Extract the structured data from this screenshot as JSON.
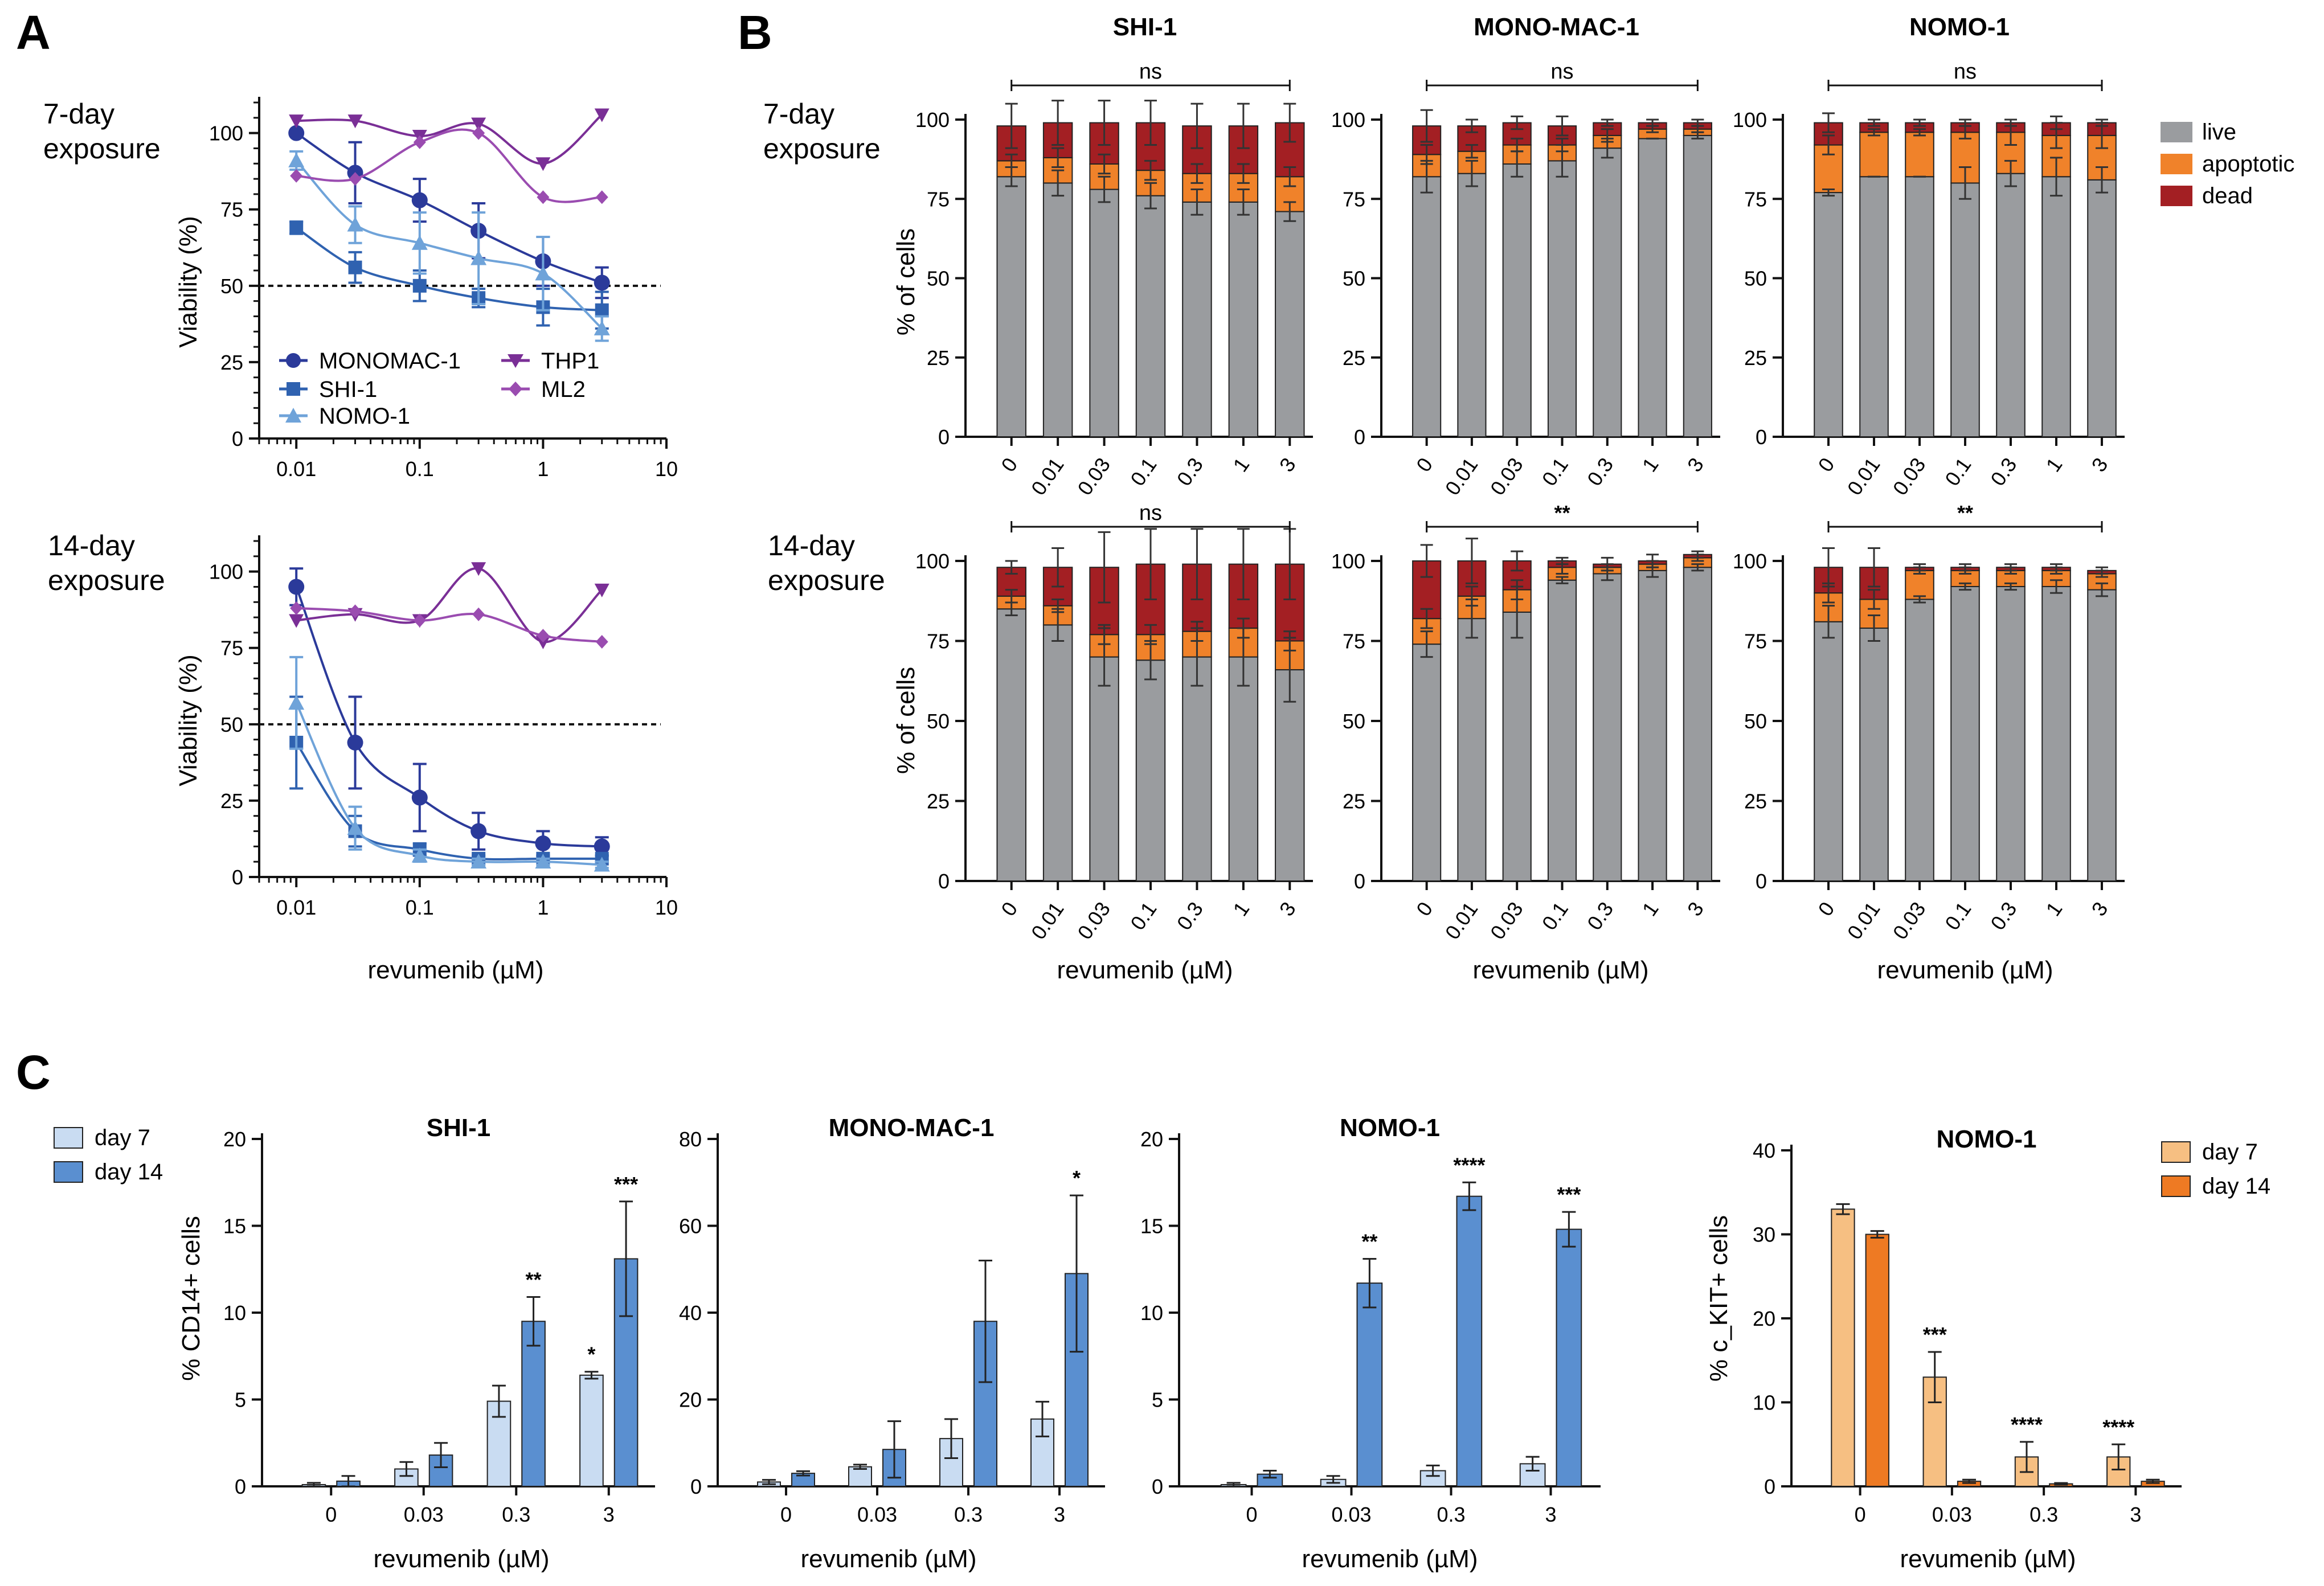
{
  "colors": {
    "monomac": "#2b3a9a",
    "shi": "#2f62b0",
    "nomo": "#6fa3d9",
    "thp1": "#7a2f96",
    "ml2": "#9a4cb0",
    "live": "#9a9c9f",
    "apoptotic": "#f0822a",
    "dead": "#a31f23",
    "day7_blue": "#c9dcf2",
    "day14_blue": "#5a8fd0",
    "day7_orange": "#f6bf82",
    "day14_orange": "#ee7a23",
    "threshold": "#111111"
  },
  "labels": {
    "panel_a": "A",
    "panel_b": "B",
    "panel_c": "C",
    "exp7_line1": "7-day",
    "exp7_line2": "exposure",
    "exp14_line1": "14-day",
    "exp14_line2": "exposure",
    "viability_axis": "Viability (%)",
    "pct_cells_axis": "% of cells",
    "x_axis": "revumenib (µM)",
    "cd14_axis": "% CD14+ cells",
    "ckit_axis": "% c_KIT+ cells"
  },
  "legend_a": [
    "MONOMAC-1",
    "SHI-1",
    "NOMO-1",
    "THP1",
    "ML2"
  ],
  "legend_b": [
    "live",
    "apoptotic",
    "dead"
  ],
  "legend_c": [
    "day 7",
    "day 14"
  ],
  "chart_data": [
    {
      "id": "a7",
      "type": "scatter",
      "title": "7-day exposure",
      "xscale": "log",
      "xlim": [
        0.005,
        10
      ],
      "ylim": [
        0,
        110
      ],
      "xticks": [
        "0.01",
        "0.1",
        "1",
        "10"
      ],
      "yticks": [
        "0",
        "25",
        "50",
        "75",
        "100"
      ],
      "xlabel": "",
      "ylabel": "Viability (%)",
      "threshold": 50,
      "x": [
        0.01,
        0.03,
        0.1,
        0.3,
        1,
        3
      ],
      "series": [
        {
          "name": "MONOMAC-1",
          "values": [
            100,
            87,
            78,
            68,
            58,
            51
          ],
          "errors": [
            0,
            10,
            7,
            9,
            8,
            5
          ]
        },
        {
          "name": "SHI-1",
          "values": [
            69,
            56,
            50,
            46,
            43,
            42
          ],
          "errors": [
            2,
            5,
            5,
            3,
            6,
            6
          ]
        },
        {
          "name": "NOMO-1",
          "values": [
            91,
            70,
            64,
            59,
            54,
            36
          ],
          "errors": [
            3,
            6,
            10,
            15,
            12,
            4
          ]
        },
        {
          "name": "THP1",
          "values": [
            104,
            104,
            99,
            103,
            90,
            106
          ],
          "errors": [
            0,
            0,
            0,
            0,
            0,
            0
          ]
        },
        {
          "name": "ML2",
          "values": [
            86,
            85,
            97,
            100,
            79,
            79
          ],
          "errors": [
            0,
            0,
            0,
            0,
            0,
            0
          ]
        }
      ]
    },
    {
      "id": "a14",
      "type": "scatter",
      "title": "14-day exposure",
      "xscale": "log",
      "xlim": [
        0.005,
        10
      ],
      "ylim": [
        0,
        110
      ],
      "xticks": [
        "0.01",
        "0.1",
        "1",
        "10"
      ],
      "yticks": [
        "0",
        "25",
        "50",
        "75",
        "100"
      ],
      "xlabel": "revumenib (µM)",
      "ylabel": "Viability (%)",
      "threshold": 50,
      "x": [
        0.01,
        0.03,
        0.1,
        0.3,
        1,
        3
      ],
      "series": [
        {
          "name": "MONOMAC-1",
          "values": [
            95,
            44,
            26,
            15,
            11,
            10
          ],
          "errors": [
            6,
            15,
            11,
            6,
            4,
            3
          ]
        },
        {
          "name": "SHI-1",
          "values": [
            44,
            15,
            9,
            6,
            6,
            6
          ],
          "errors": [
            15,
            5,
            2,
            1,
            1,
            1
          ]
        },
        {
          "name": "NOMO-1",
          "values": [
            57,
            16,
            7,
            5,
            5,
            4
          ],
          "errors": [
            15,
            7,
            2,
            1,
            1,
            1
          ]
        },
        {
          "name": "THP1",
          "values": [
            84,
            86,
            84,
            101,
            77,
            94
          ],
          "errors": [
            0,
            0,
            0,
            0,
            0,
            0
          ]
        },
        {
          "name": "ML2",
          "values": [
            88,
            87,
            84,
            86,
            79,
            77
          ],
          "errors": [
            0,
            0,
            0,
            0,
            0,
            0
          ]
        }
      ]
    },
    {
      "id": "b7_shi",
      "type": "bar",
      "stacked": true,
      "title": "SHI-1",
      "significance": "ns",
      "xlabel": "",
      "ylabel": "% of cells",
      "ylim": [
        0,
        100
      ],
      "yticks": [
        "0",
        "25",
        "50",
        "75",
        "100"
      ],
      "categories": [
        "0",
        "0.01",
        "0.03",
        "0.1",
        "0.3",
        "1",
        "3"
      ],
      "series": [
        {
          "name": "live",
          "values": [
            82,
            80,
            78,
            76,
            74,
            74,
            71
          ],
          "errors": [
            3,
            4,
            4,
            4,
            4,
            4,
            3
          ]
        },
        {
          "name": "apoptotic",
          "values": [
            5,
            8,
            8,
            8,
            9,
            9,
            11
          ],
          "errors": [
            2,
            3,
            3,
            3,
            3,
            3,
            3
          ]
        },
        {
          "name": "dead",
          "values": [
            11,
            11,
            13,
            15,
            15,
            15,
            17
          ],
          "errors": [
            7,
            7,
            7,
            7,
            7,
            7,
            6
          ]
        }
      ]
    },
    {
      "id": "b7_mono",
      "type": "bar",
      "stacked": true,
      "title": "MONO-MAC-1",
      "significance": "ns",
      "xlabel": "",
      "ylabel": "",
      "ylim": [
        0,
        100
      ],
      "yticks": [
        "0",
        "25",
        "50",
        "75",
        "100"
      ],
      "categories": [
        "0",
        "0.01",
        "0.03",
        "0.1",
        "0.3",
        "1",
        "3"
      ],
      "series": [
        {
          "name": "live",
          "values": [
            82,
            83,
            86,
            87,
            91,
            94,
            95
          ],
          "errors": [
            5,
            4,
            4,
            5,
            3,
            0,
            1
          ]
        },
        {
          "name": "apoptotic",
          "values": [
            7,
            7,
            6,
            5,
            4,
            3,
            2
          ],
          "errors": [
            3,
            2,
            2,
            2,
            2,
            1,
            1
          ]
        },
        {
          "name": "dead",
          "values": [
            9,
            8,
            7,
            6,
            4,
            2,
            2
          ],
          "errors": [
            5,
            2,
            2,
            3,
            1,
            1,
            1
          ]
        }
      ]
    },
    {
      "id": "b7_nomo",
      "type": "bar",
      "stacked": true,
      "title": "NOMO-1",
      "significance": "ns",
      "xlabel": "",
      "ylabel": "",
      "ylim": [
        0,
        100
      ],
      "yticks": [
        "0",
        "25",
        "50",
        "75",
        "100"
      ],
      "categories": [
        "0",
        "0.01",
        "0.03",
        "0.1",
        "0.3",
        "1",
        "3"
      ],
      "series": [
        {
          "name": "live",
          "values": [
            77,
            82,
            82,
            80,
            83,
            82,
            81
          ],
          "errors": [
            1,
            0,
            0,
            5,
            4,
            6,
            4
          ]
        },
        {
          "name": "apoptotic",
          "values": [
            15,
            14,
            14,
            16,
            13,
            13,
            14
          ],
          "errors": [
            3,
            1,
            1,
            2,
            4,
            4,
            4
          ]
        },
        {
          "name": "dead",
          "values": [
            7,
            3,
            3,
            3,
            3,
            4,
            4
          ],
          "errors": [
            3,
            1,
            1,
            1,
            1,
            2,
            1
          ]
        }
      ]
    },
    {
      "id": "b14_shi",
      "type": "bar",
      "stacked": true,
      "title": "",
      "significance": "ns",
      "xlabel": "revumenib (µM)",
      "ylabel": "% of cells",
      "ylim": [
        0,
        100
      ],
      "yticks": [
        "0",
        "25",
        "50",
        "75",
        "100"
      ],
      "categories": [
        "0",
        "0.01",
        "0.03",
        "0.1",
        "0.3",
        "1",
        "3"
      ],
      "series": [
        {
          "name": "live",
          "values": [
            85,
            80,
            70,
            69,
            70,
            70,
            66
          ],
          "errors": [
            2,
            5,
            9,
            6,
            9,
            9,
            10
          ]
        },
        {
          "name": "apoptotic",
          "values": [
            4,
            6,
            7,
            8,
            8,
            9,
            9
          ],
          "errors": [
            2,
            2,
            3,
            3,
            3,
            3,
            3
          ]
        },
        {
          "name": "dead",
          "values": [
            9,
            12,
            21,
            22,
            21,
            20,
            24
          ],
          "errors": [
            2,
            6,
            11,
            11,
            11,
            11,
            11
          ]
        }
      ]
    },
    {
      "id": "b14_mono",
      "type": "bar",
      "stacked": true,
      "title": "",
      "significance": "**",
      "xlabel": "revumenib (µM)",
      "ylabel": "",
      "ylim": [
        0,
        100
      ],
      "yticks": [
        "0",
        "25",
        "50",
        "75",
        "100"
      ],
      "categories": [
        "0",
        "0.01",
        "0.03",
        "0.1",
        "0.3",
        "1",
        "3"
      ],
      "series": [
        {
          "name": "live",
          "values": [
            74,
            82,
            84,
            94,
            96,
            97,
            98
          ],
          "errors": [
            4,
            6,
            8,
            1,
            2,
            2,
            1
          ]
        },
        {
          "name": "apoptotic",
          "values": [
            8,
            7,
            7,
            4,
            2,
            2,
            3
          ],
          "errors": [
            3,
            3,
            3,
            2,
            1,
            1,
            1
          ]
        },
        {
          "name": "dead",
          "values": [
            18,
            11,
            9,
            2,
            1,
            1,
            1
          ],
          "errors": [
            5,
            7,
            3,
            1,
            2,
            2,
            1
          ]
        }
      ]
    },
    {
      "id": "b14_nomo",
      "type": "bar",
      "stacked": true,
      "title": "",
      "significance": "**",
      "xlabel": "revumenib (µM)",
      "ylabel": "",
      "ylim": [
        0,
        100
      ],
      "yticks": [
        "0",
        "25",
        "50",
        "75",
        "100"
      ],
      "categories": [
        "0",
        "0.01",
        "0.03",
        "0.1",
        "0.3",
        "1",
        "3"
      ],
      "series": [
        {
          "name": "live",
          "values": [
            81,
            79,
            88,
            92,
            92,
            92,
            91
          ],
          "errors": [
            5,
            4,
            1,
            1,
            1,
            2,
            2
          ]
        },
        {
          "name": "apoptotic",
          "values": [
            9,
            9,
            9,
            5,
            5,
            5,
            5
          ],
          "errors": [
            3,
            3,
            1,
            1,
            1,
            1,
            1
          ]
        },
        {
          "name": "dead",
          "values": [
            8,
            10,
            1,
            1,
            1,
            1,
            1
          ],
          "errors": [
            6,
            6,
            1,
            1,
            1,
            1,
            1
          ]
        }
      ]
    },
    {
      "id": "c_shi",
      "type": "bar",
      "title": "SHI-1",
      "xlabel": "revumenib (µM)",
      "ylabel": "% CD14+ cells",
      "ylim": [
        0,
        20
      ],
      "yticks": [
        "0",
        "5",
        "10",
        "15",
        "20"
      ],
      "categories": [
        "0",
        "0.03",
        "0.3",
        "3"
      ],
      "series": [
        {
          "name": "day 7",
          "values": [
            0.1,
            1.0,
            4.9,
            6.4
          ],
          "errors": [
            0.1,
            0.4,
            0.9,
            0.2
          ],
          "sig": [
            "",
            "",
            "",
            "*"
          ]
        },
        {
          "name": "day 14",
          "values": [
            0.3,
            1.8,
            9.5,
            13.1
          ],
          "errors": [
            0.3,
            0.7,
            1.4,
            3.3
          ],
          "sig": [
            "",
            "",
            "**",
            "***"
          ]
        }
      ]
    },
    {
      "id": "c_mono",
      "type": "bar",
      "title": "MONO-MAC-1",
      "xlabel": "revumenib (µM)",
      "ylabel": "",
      "ylim": [
        0,
        80
      ],
      "yticks": [
        "0",
        "20",
        "40",
        "60",
        "80"
      ],
      "categories": [
        "0",
        "0.03",
        "0.3",
        "3"
      ],
      "series": [
        {
          "name": "day 7",
          "values": [
            1,
            4.5,
            11,
            15.5
          ],
          "errors": [
            0.5,
            0.5,
            4.5,
            4
          ],
          "sig": [
            "",
            "",
            "",
            ""
          ]
        },
        {
          "name": "day 14",
          "values": [
            3,
            8.5,
            38,
            49
          ],
          "errors": [
            0.5,
            6.5,
            14,
            18
          ],
          "sig": [
            "",
            "",
            "",
            "*"
          ]
        }
      ]
    },
    {
      "id": "c_nomo",
      "type": "bar",
      "title": "NOMO-1",
      "xlabel": "revumenib (µM)",
      "ylabel": "",
      "ylim": [
        0,
        20
      ],
      "yticks": [
        "0",
        "5",
        "10",
        "15",
        "20"
      ],
      "categories": [
        "0",
        "0.03",
        "0.3",
        "3"
      ],
      "series": [
        {
          "name": "day 7",
          "values": [
            0.1,
            0.4,
            0.9,
            1.3
          ],
          "errors": [
            0.1,
            0.2,
            0.3,
            0.4
          ],
          "sig": [
            "",
            "",
            "",
            ""
          ]
        },
        {
          "name": "day 14",
          "values": [
            0.7,
            11.7,
            16.7,
            14.8
          ],
          "errors": [
            0.2,
            1.4,
            0.8,
            1.0
          ],
          "sig": [
            "",
            "**",
            "****",
            "***"
          ]
        }
      ]
    },
    {
      "id": "c_kit",
      "type": "bar",
      "title": "NOMO-1",
      "xlabel": "revumenib (µM)",
      "ylabel": "% c_KIT+ cells",
      "ylim": [
        0,
        40
      ],
      "yticks": [
        "0",
        "10",
        "20",
        "30",
        "40"
      ],
      "categories": [
        "0",
        "0.03",
        "0.3",
        "3"
      ],
      "series": [
        {
          "name": "day 7",
          "values": [
            33,
            13,
            3.5,
            3.5
          ],
          "errors": [
            0.6,
            3,
            1.8,
            1.5
          ],
          "sig": [
            "",
            "***",
            "****",
            "****"
          ]
        },
        {
          "name": "day 14",
          "values": [
            30,
            0.6,
            0.3,
            0.6
          ],
          "errors": [
            0.4,
            0.2,
            0.1,
            0.2
          ],
          "sig": [
            "",
            "",
            "",
            ""
          ]
        }
      ]
    }
  ]
}
